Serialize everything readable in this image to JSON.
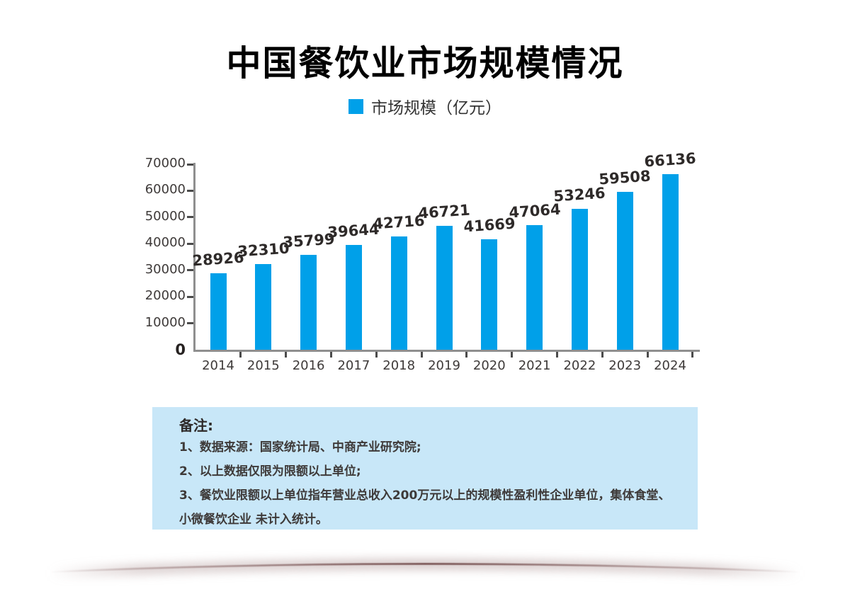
{
  "title": "中国餐饮业市场规模情况",
  "legend": {
    "label": "市场规模（亿元）",
    "color": "#00A0E9"
  },
  "chart_data": {
    "type": "bar",
    "title": "中国餐饮业市场规模情况",
    "series_name": "市场规模（亿元）",
    "categories": [
      "2014",
      "2015",
      "2016",
      "2017",
      "2018",
      "2019",
      "2020",
      "2021",
      "2022",
      "2023",
      "2024"
    ],
    "values": [
      28926,
      32310,
      35799,
      39644,
      42716,
      46721,
      41669,
      47064,
      53246,
      59508,
      66136
    ],
    "xlabel": "",
    "ylabel": "",
    "ylim": [
      0,
      70000
    ],
    "yticks": [
      0,
      10000,
      20000,
      30000,
      40000,
      50000,
      60000,
      70000
    ],
    "grid": false,
    "legend_position": "top",
    "bar_color": "#00A0E9",
    "value_labels_shown": true
  },
  "notes": {
    "heading": "备注:",
    "items": [
      "1、数据来源：国家统计局、中商产业研究院;",
      "2、以上数据仅限为限额以上单位;",
      "3、餐饮业限额以上单位指年营业总收入200万元以上的规模性盈利性企业单位，集体食堂、小微餐饮企业 未计入统计。"
    ],
    "bg_color": "#C8E7F8"
  },
  "decor": {
    "arc_color": "#8c6b6b"
  }
}
